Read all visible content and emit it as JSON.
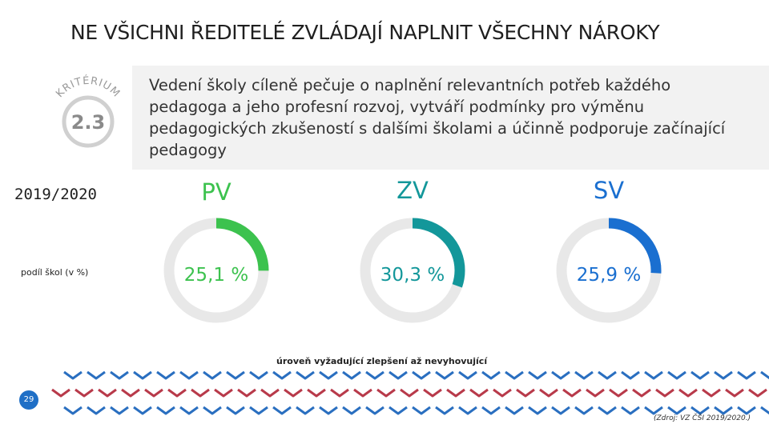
{
  "title": "NE VŠICHNI ŘEDITELÉ ZVLÁDAJÍ NAPLNIT VŠECHNY NÁROKY",
  "badge": {
    "arc_text": "KRITÉRIUM",
    "number": "2.3"
  },
  "banner_text": "Vedení školy cíleně pečuje o naplnění relevantních potřeb každého pedagoga a jeho profesní rozvoj, vytváří podmínky pro výměnu pedagogických zkušeností s dalšími školami a účinně podporuje začínající pedagogy",
  "year": "2019/2020",
  "subtitle": "podíl škol (v %)",
  "scale_label": "úroveň vyžadující zlepšení až nevyhovující",
  "page_number": "29",
  "source": "(Zdroj: VZ ČŠI 2019/2020.)",
  "colors": {
    "track": "#e8e8e8",
    "pv": "#3cc24e",
    "zv": "#13979a",
    "sv": "#1a6fd0",
    "chevron_blue": "#2a6fc0",
    "chevron_red": "#b83a4a"
  },
  "chart_data": {
    "type": "pie",
    "series": [
      {
        "name": "PV",
        "value": 25.1,
        "label": "25,1 %",
        "color": "#3cc24e"
      },
      {
        "name": "ZV",
        "value": 30.3,
        "label": "30,3 %",
        "color": "#13979a"
      },
      {
        "name": "SV",
        "value": 25.9,
        "label": "25,9 %",
        "color": "#1a6fd0"
      }
    ]
  }
}
